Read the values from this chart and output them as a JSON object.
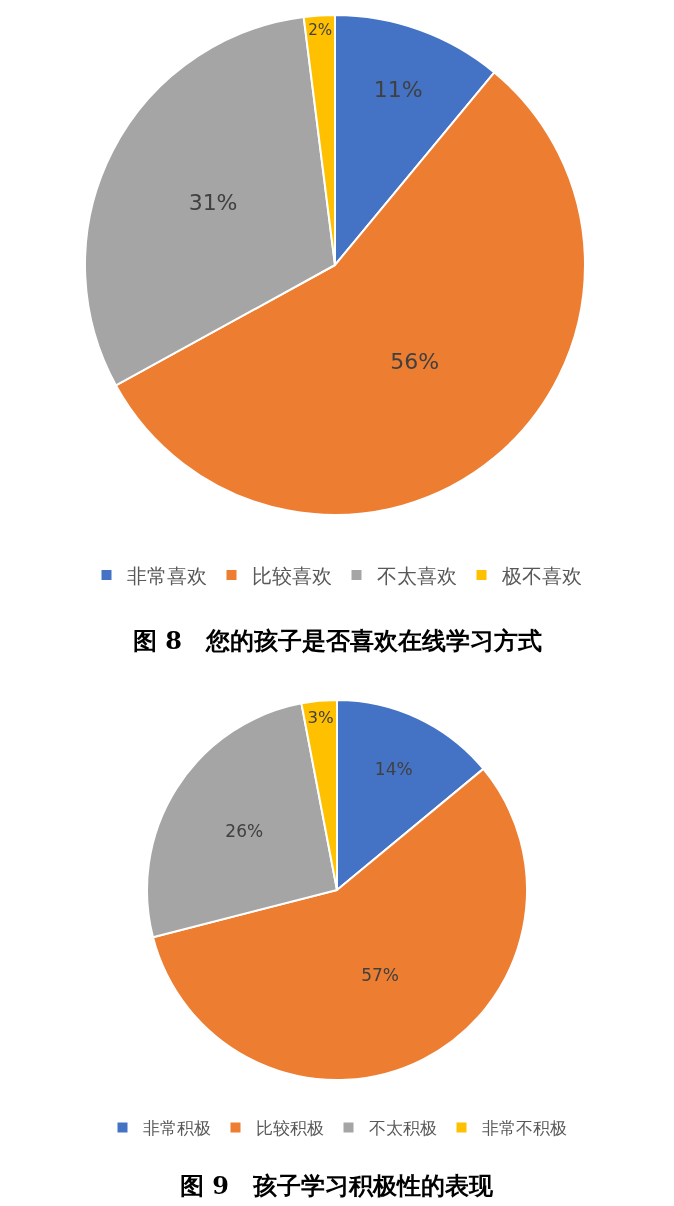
{
  "chart_data": [
    {
      "type": "pie",
      "title": "图 8　您的孩子是否喜欢在线学习方式",
      "categories": [
        "非常喜欢",
        "比较喜欢",
        "不太喜欢",
        "极不喜欢"
      ],
      "values": [
        11,
        56,
        31,
        2
      ],
      "colors": [
        "#4472c4",
        "#ed7d31",
        "#a5a5a5",
        "#ffc000"
      ],
      "value_labels": [
        "11%",
        "56%",
        "31%",
        "2%"
      ],
      "legend": "bottom"
    },
    {
      "type": "pie",
      "title": "图 9　孩子学习积极性的表现",
      "categories": [
        "非常积极",
        "比较积极",
        "不太积极",
        "非常不积极"
      ],
      "values": [
        14,
        57,
        26,
        3
      ],
      "colors": [
        "#4472c4",
        "#ed7d31",
        "#a5a5a5",
        "#ffc000"
      ],
      "value_labels": [
        "14%",
        "57%",
        "26%",
        "3%"
      ],
      "legend": "bottom"
    }
  ]
}
